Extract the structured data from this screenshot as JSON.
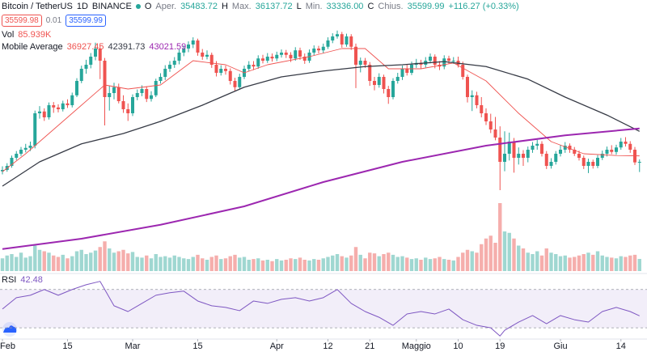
{
  "header": {
    "symbol": "Bitcoin / TetherUS",
    "interval": "1D",
    "exchange": "BINANCE",
    "ohlc": [
      {
        "key": "O",
        "label": "Aper.",
        "value": "35483.72"
      },
      {
        "key": "H",
        "label": "Max.",
        "value": "36137.72"
      },
      {
        "key": "L",
        "label": "Min.",
        "value": "33336.00"
      },
      {
        "key": "C",
        "label": "Chius.",
        "value": "35599.99"
      }
    ],
    "change": "+116.27 (+0.33%)",
    "sell": "35599.98",
    "spread": "0.01",
    "buy": "35599.99",
    "volume_label": "Vol",
    "volume_value": "85.939K",
    "ma_label": "Mobile Average",
    "ma_values": [
      "36927.45",
      "42391.73",
      "43021.59"
    ],
    "rsi_label": "RSI",
    "rsi_value": "42.48"
  },
  "chart_data": {
    "type": "candlestick",
    "up_color": "#26a69a",
    "down_color": "#ef5350",
    "volume_up_color": "#9fd7d1",
    "volume_down_color": "#f5aeac",
    "ylim": [
      26600,
      68000
    ],
    "candles": [
      [
        33500,
        34600,
        32800,
        33800
      ],
      [
        33800,
        35300,
        33400,
        34700
      ],
      [
        34700,
        37000,
        34300,
        36500
      ],
      [
        36500,
        38000,
        36000,
        37400
      ],
      [
        37400,
        38900,
        36900,
        38300
      ],
      [
        38300,
        39600,
        37700,
        38700
      ],
      [
        38700,
        40100,
        38000,
        39200
      ],
      [
        39200,
        47000,
        38600,
        46400
      ],
      [
        46400,
        48000,
        45200,
        46800
      ],
      [
        46800,
        47500,
        44700,
        45500
      ],
      [
        45500,
        48800,
        45000,
        48200
      ],
      [
        48200,
        48900,
        46500,
        47700
      ],
      [
        47700,
        48400,
        46600,
        47300
      ],
      [
        47300,
        49200,
        46800,
        48600
      ],
      [
        48600,
        49500,
        47600,
        48200
      ],
      [
        48200,
        51000,
        47700,
        50400
      ],
      [
        50400,
        54200,
        50000,
        53600
      ],
      [
        53600,
        57000,
        53100,
        56300
      ],
      [
        56300,
        58300,
        55200,
        57200
      ],
      [
        57200,
        59800,
        56400,
        59000
      ],
      [
        59000,
        62100,
        58200,
        60800
      ],
      [
        60800,
        61500,
        54000,
        58100
      ],
      [
        58100,
        58700,
        43700,
        50000
      ],
      [
        50000,
        52500,
        47000,
        50900
      ],
      [
        50900,
        53200,
        49500,
        52200
      ],
      [
        52200,
        53000,
        48600,
        49100
      ],
      [
        49100,
        50400,
        46500,
        47300
      ],
      [
        47300,
        48600,
        44700,
        46400
      ],
      [
        46400,
        50600,
        45800,
        50000
      ],
      [
        50000,
        51700,
        49300,
        50900
      ],
      [
        50900,
        52600,
        50200,
        51800
      ],
      [
        51800,
        52400,
        48900,
        49600
      ],
      [
        49600,
        51300,
        49000,
        50400
      ],
      [
        50400,
        54100,
        50000,
        53600
      ],
      [
        53600,
        55300,
        53000,
        54500
      ],
      [
        54500,
        57100,
        53800,
        56300
      ],
      [
        56300,
        58000,
        55600,
        57200
      ],
      [
        57200,
        58900,
        56500,
        58100
      ],
      [
        58100,
        60600,
        57300,
        59900
      ],
      [
        59900,
        61500,
        59100,
        60800
      ],
      [
        60800,
        62400,
        60000,
        61700
      ],
      [
        61700,
        63300,
        60900,
        62600
      ],
      [
        62600,
        63000,
        59200,
        59900
      ],
      [
        59900,
        60700,
        58300,
        59000
      ],
      [
        59000,
        60400,
        58400,
        59400
      ],
      [
        59400,
        59900,
        56500,
        57200
      ],
      [
        57200,
        58000,
        54600,
        55400
      ],
      [
        55400,
        57100,
        54800,
        56300
      ],
      [
        56300,
        57000,
        55000,
        55800
      ],
      [
        55800,
        56400,
        52800,
        53600
      ],
      [
        53600,
        54300,
        51300,
        52200
      ],
      [
        52200,
        55200,
        51700,
        54500
      ],
      [
        54500,
        57000,
        54000,
        56300
      ],
      [
        56300,
        58000,
        55700,
        57200
      ],
      [
        57200,
        58000,
        56000,
        56800
      ],
      [
        56800,
        59300,
        56300,
        58600
      ],
      [
        58600,
        59400,
        57500,
        58100
      ],
      [
        58100,
        59800,
        57600,
        59000
      ],
      [
        59000,
        59700,
        57900,
        58600
      ],
      [
        58600,
        60100,
        58000,
        59400
      ],
      [
        59400,
        60600,
        58800,
        59900
      ],
      [
        59900,
        60500,
        58700,
        59400
      ],
      [
        59400,
        60000,
        57800,
        58600
      ],
      [
        58600,
        61100,
        58100,
        60400
      ],
      [
        60400,
        61000,
        58300,
        59000
      ],
      [
        59000,
        59700,
        57400,
        58100
      ],
      [
        58100,
        60600,
        57600,
        59900
      ],
      [
        59900,
        61500,
        59300,
        60800
      ],
      [
        60800,
        61400,
        59700,
        60400
      ],
      [
        60400,
        61900,
        59800,
        61200
      ],
      [
        61200,
        63300,
        60700,
        62600
      ],
      [
        62600,
        64200,
        62000,
        63500
      ],
      [
        63500,
        64800,
        63000,
        64000
      ],
      [
        64000,
        64500,
        61000,
        61700
      ],
      [
        61700,
        64100,
        61200,
        63500
      ],
      [
        63500,
        64000,
        60500,
        61200
      ],
      [
        61200,
        61900,
        52000,
        57200
      ],
      [
        57200,
        58800,
        55500,
        58100
      ],
      [
        58100,
        58700,
        56500,
        57200
      ],
      [
        57200,
        57800,
        52500,
        53600
      ],
      [
        53600,
        54500,
        51500,
        52700
      ],
      [
        52700,
        55300,
        52100,
        54500
      ],
      [
        54500,
        55000,
        50800,
        51800
      ],
      [
        51800,
        52500,
        48500,
        50000
      ],
      [
        50000,
        54200,
        49500,
        53600
      ],
      [
        53600,
        55400,
        53000,
        54500
      ],
      [
        54500,
        57000,
        53800,
        56300
      ],
      [
        56300,
        57300,
        54800,
        55400
      ],
      [
        55400,
        57900,
        54900,
        57200
      ],
      [
        57200,
        58500,
        56500,
        57600
      ],
      [
        57600,
        58300,
        56400,
        57200
      ],
      [
        57200,
        58900,
        56600,
        58100
      ],
      [
        58100,
        59700,
        57500,
        59000
      ],
      [
        59000,
        59500,
        56400,
        57200
      ],
      [
        57200,
        58000,
        56000,
        56800
      ],
      [
        56800,
        59300,
        56200,
        58600
      ],
      [
        58600,
        59200,
        57400,
        58100
      ],
      [
        58100,
        58900,
        57400,
        58100
      ],
      [
        58100,
        59000,
        56600,
        57200
      ],
      [
        57200,
        57900,
        53900,
        54500
      ],
      [
        54500,
        55000,
        48800,
        50000
      ],
      [
        50000,
        51500,
        46900,
        50400
      ],
      [
        50400,
        51200,
        47500,
        48200
      ],
      [
        48200,
        50000,
        45500,
        46400
      ],
      [
        46400,
        47500,
        43800,
        44600
      ],
      [
        44600,
        46300,
        42000,
        42800
      ],
      [
        42800,
        45600,
        40400,
        41000
      ],
      [
        41000,
        43500,
        29300,
        35600
      ],
      [
        35600,
        42400,
        33500,
        37400
      ],
      [
        37400,
        42100,
        35900,
        40100
      ],
      [
        40100,
        40900,
        33200,
        36500
      ],
      [
        36500,
        38800,
        35000,
        37400
      ],
      [
        37400,
        38200,
        34700,
        36500
      ],
      [
        36500,
        39000,
        35500,
        38300
      ],
      [
        38300,
        40000,
        37600,
        39200
      ],
      [
        39200,
        40500,
        38300,
        39600
      ],
      [
        39600,
        40200,
        36800,
        37400
      ],
      [
        37400,
        38000,
        34000,
        34700
      ],
      [
        34700,
        36400,
        34100,
        35600
      ],
      [
        35600,
        38000,
        35000,
        37400
      ],
      [
        37400,
        39300,
        36800,
        38300
      ],
      [
        38300,
        40000,
        37600,
        39200
      ],
      [
        39200,
        39700,
        37600,
        38300
      ],
      [
        38300,
        38900,
        36900,
        37400
      ],
      [
        37400,
        38100,
        35900,
        36500
      ],
      [
        36500,
        37000,
        34000,
        34700
      ],
      [
        34700,
        36300,
        33100,
        35600
      ],
      [
        35600,
        36100,
        34100,
        34700
      ],
      [
        34700,
        37100,
        34200,
        36500
      ],
      [
        36500,
        38100,
        36000,
        37400
      ],
      [
        37400,
        39000,
        36800,
        38300
      ],
      [
        38300,
        39300,
        37300,
        37800
      ],
      [
        37800,
        39400,
        37200,
        38800
      ],
      [
        38800,
        40900,
        38300,
        40100
      ],
      [
        40100,
        41100,
        39000,
        39600
      ],
      [
        39600,
        40200,
        37600,
        38300
      ],
      [
        38300,
        38900,
        34900,
        35483.72
      ],
      [
        35483.72,
        36137.72,
        33336.0,
        35599.99
      ]
    ],
    "volume_lim": [
      0,
      480000
    ],
    "volume": [
      90000,
      110000,
      120000,
      100000,
      130000,
      95000,
      105000,
      180000,
      150000,
      140000,
      130000,
      110000,
      100000,
      115000,
      90000,
      105000,
      140000,
      150000,
      120000,
      130000,
      145000,
      170000,
      210000,
      160000,
      130000,
      140000,
      150000,
      125000,
      135000,
      100000,
      95000,
      110000,
      90000,
      120000,
      100000,
      105000,
      95000,
      110000,
      100000,
      90000,
      85000,
      100000,
      115000,
      90000,
      80000,
      100000,
      110000,
      85000,
      90000,
      105000,
      115000,
      95000,
      100000,
      80000,
      85000,
      90000,
      75000,
      80000,
      70000,
      85000,
      75000,
      80000,
      90000,
      85000,
      95000,
      80000,
      75000,
      85000,
      80000,
      90000,
      100000,
      110000,
      120000,
      105000,
      95000,
      110000,
      170000,
      115000,
      90000,
      130000,
      125000,
      105000,
      120000,
      130000,
      115000,
      100000,
      105000,
      95000,
      85000,
      90000,
      80000,
      95000,
      85000,
      90000,
      100000,
      85000,
      80000,
      75000,
      100000,
      130000,
      150000,
      140000,
      130000,
      190000,
      230000,
      250000,
      200000,
      480000,
      280000,
      270000,
      230000,
      180000,
      160000,
      130000,
      120000,
      140000,
      110000,
      160000,
      130000,
      120000,
      105000,
      110000,
      95000,
      100000,
      110000,
      120000,
      130000,
      115000,
      140000,
      110000,
      100000,
      95000,
      90000,
      105000,
      100000,
      110000,
      115000,
      85939
    ],
    "moving_averages": [
      {
        "color": "#ef5350",
        "x": [
          0,
          5,
          10,
          17,
          22,
          27,
          34,
          41,
          48,
          52,
          57,
          66,
          73,
          78,
          83,
          90,
          97,
          104,
          111,
          118,
          125,
          132,
          137
        ],
        "values": [
          33400,
          37400,
          41900,
          48200,
          52700,
          51800,
          52700,
          58100,
          57200,
          55400,
          57200,
          59000,
          60800,
          60800,
          56300,
          56300,
          57600,
          53600,
          46400,
          40100,
          37400,
          37000,
          36927.45
        ]
      },
      {
        "color": "#363a45",
        "x": [
          0,
          8,
          17,
          26,
          34,
          43,
          52,
          60,
          69,
          78,
          86,
          95,
          104,
          113,
          121,
          130,
          137
        ],
        "values": [
          30200,
          35600,
          39600,
          41900,
          44600,
          48200,
          52200,
          54500,
          55800,
          56800,
          57200,
          57900,
          56800,
          54000,
          50000,
          46000,
          42391.73
        ]
      },
      {
        "color": "#9c27b0",
        "x": [
          0,
          17,
          34,
          52,
          69,
          86,
          104,
          121,
          137
        ],
        "values": [
          16200,
          18500,
          21600,
          25700,
          31100,
          35600,
          39200,
          41500,
          43021.59
        ]
      }
    ],
    "rsi": {
      "color": "#7e57c2",
      "ylim": [
        9,
        85
      ],
      "band": [
        30,
        70
      ],
      "x": [
        0,
        3,
        6,
        9,
        12,
        15,
        18,
        21,
        24,
        27,
        30,
        33,
        36,
        39,
        42,
        45,
        48,
        51,
        54,
        57,
        60,
        63,
        66,
        69,
        72,
        75,
        78,
        81,
        84,
        87,
        90,
        93,
        96,
        99,
        102,
        105,
        107,
        108,
        111,
        114,
        117,
        120,
        123,
        126,
        129,
        132,
        135,
        137
      ],
      "values": [
        49.6,
        61.5,
        64,
        70,
        64,
        70,
        75,
        78.5,
        53,
        47,
        55.5,
        64,
        66.6,
        68.3,
        58,
        53,
        51.3,
        47.9,
        58,
        55.5,
        59.8,
        61.5,
        58,
        61.5,
        70,
        55.5,
        47,
        41,
        32.6,
        44.5,
        47,
        44.5,
        49.6,
        38.5,
        32.6,
        30,
        21.5,
        27.4,
        36,
        42.8,
        34.3,
        42.8,
        38.5,
        36,
        47,
        51.3,
        47,
        42.48
      ]
    },
    "xticks": [
      {
        "value": 0,
        "label": "Feb"
      },
      {
        "value": 14,
        "label": "15"
      },
      {
        "value": 28,
        "label": "Mar"
      },
      {
        "value": 42,
        "label": "15"
      },
      {
        "value": 59,
        "label": "Apr"
      },
      {
        "value": 70,
        "label": "12"
      },
      {
        "value": 79,
        "label": "21"
      },
      {
        "value": 89,
        "label": "Maggio"
      },
      {
        "value": 98,
        "label": "10"
      },
      {
        "value": 107,
        "label": "19"
      },
      {
        "value": 120,
        "label": "Giu"
      },
      {
        "value": 133,
        "label": "14"
      }
    ]
  }
}
